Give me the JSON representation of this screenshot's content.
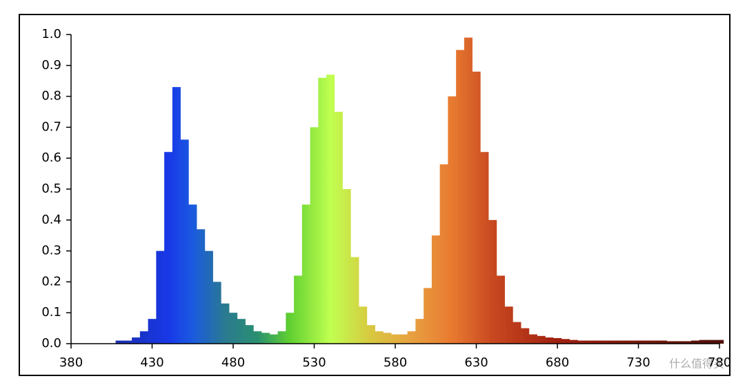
{
  "chart_data": {
    "type": "spectrum",
    "x": [
      410,
      415,
      420,
      425,
      430,
      435,
      440,
      445,
      450,
      455,
      460,
      465,
      470,
      475,
      480,
      485,
      490,
      495,
      500,
      505,
      510,
      515,
      520,
      525,
      530,
      535,
      540,
      545,
      550,
      555,
      560,
      565,
      570,
      575,
      580,
      585,
      590,
      595,
      600,
      605,
      610,
      615,
      620,
      625,
      630,
      635,
      640,
      645,
      650,
      655,
      660,
      665,
      670,
      675,
      680,
      685,
      690,
      695,
      700,
      705,
      710,
      715,
      720,
      725,
      730,
      735,
      740,
      745,
      750,
      755,
      760,
      765,
      770,
      775,
      780
    ],
    "values": [
      0.01,
      0.01,
      0.02,
      0.04,
      0.08,
      0.3,
      0.62,
      0.83,
      0.66,
      0.45,
      0.37,
      0.3,
      0.2,
      0.13,
      0.1,
      0.08,
      0.06,
      0.04,
      0.035,
      0.03,
      0.04,
      0.1,
      0.22,
      0.45,
      0.7,
      0.86,
      0.87,
      0.75,
      0.5,
      0.28,
      0.12,
      0.06,
      0.04,
      0.035,
      0.03,
      0.03,
      0.04,
      0.08,
      0.18,
      0.35,
      0.58,
      0.8,
      0.95,
      0.99,
      0.88,
      0.62,
      0.4,
      0.22,
      0.12,
      0.07,
      0.05,
      0.03,
      0.025,
      0.02,
      0.018,
      0.015,
      0.012,
      0.01,
      0.01,
      0.01,
      0.01,
      0.01,
      0.01,
      0.01,
      0.01,
      0.01,
      0.01,
      0.01,
      0.008,
      0.008,
      0.008,
      0.01,
      0.012,
      0.012,
      0.012
    ],
    "gradient": [
      [
        410,
        "#1a2fb0"
      ],
      [
        440,
        "#1838e8"
      ],
      [
        455,
        "#1a5ae0"
      ],
      [
        475,
        "#2a7a90"
      ],
      [
        495,
        "#2a9070"
      ],
      [
        515,
        "#60d030"
      ],
      [
        540,
        "#c0ff50"
      ],
      [
        565,
        "#d8c840"
      ],
      [
        590,
        "#e8a040"
      ],
      [
        615,
        "#e87a30"
      ],
      [
        640,
        "#c84820"
      ],
      [
        680,
        "#a02010"
      ],
      [
        780,
        "#501008"
      ]
    ],
    "xlim": [
      380,
      780
    ],
    "xticks": [
      380,
      430,
      480,
      530,
      580,
      630,
      680,
      730,
      780
    ],
    "ylim": [
      0,
      1
    ],
    "yticks": [
      {
        "value": 0,
        "label": "0.0"
      },
      0.1,
      0.2,
      0.3,
      0.4,
      0.5,
      0.6,
      0.7,
      0.8,
      0.9,
      {
        "value": 1,
        "label": "1.0"
      }
    ],
    "watermark": "什么值得买"
  }
}
